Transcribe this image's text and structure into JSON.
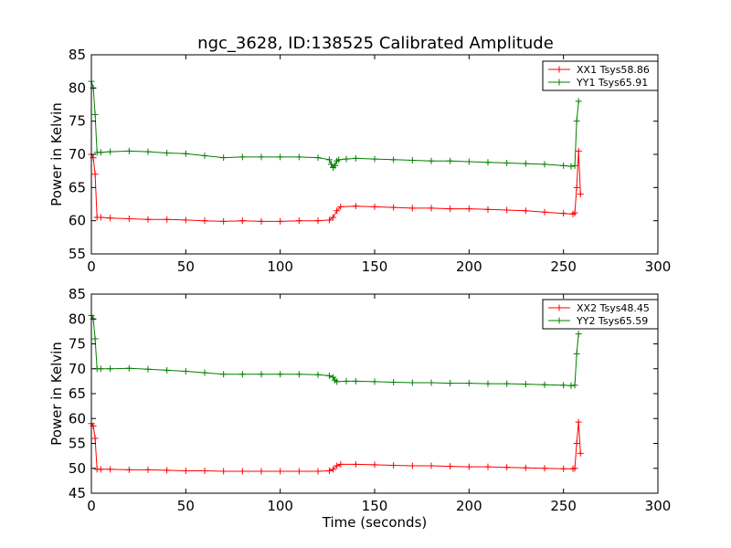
{
  "figure": {
    "title": "ngc_3628, ID:138525 Calibrated Amplitude"
  },
  "chart_data": [
    {
      "type": "line",
      "title": "ngc_3628, ID:138525 Calibrated Amplitude",
      "xlabel": "",
      "ylabel": "Power in Kelvin",
      "xlim": [
        0,
        300
      ],
      "ylim": [
        55,
        85
      ],
      "xticks": [
        "0",
        "50",
        "100",
        "150",
        "200",
        "250",
        "300"
      ],
      "yticks": [
        "55",
        "60",
        "65",
        "70",
        "75",
        "80",
        "85"
      ],
      "grid": false,
      "legend_position": "top-right",
      "series": [
        {
          "name": "XX1 Tsys58.86",
          "color": "#ff0000",
          "marker": "plus",
          "x": [
            0,
            1,
            2,
            3,
            5,
            10,
            20,
            30,
            40,
            50,
            60,
            70,
            80,
            90,
            100,
            110,
            120,
            126,
            128,
            130,
            132,
            140,
            150,
            160,
            170,
            180,
            190,
            200,
            210,
            220,
            230,
            240,
            250,
            255,
            256,
            257,
            258,
            259
          ],
          "y": [
            70,
            69.5,
            67,
            60.5,
            60.5,
            60.4,
            60.3,
            60.2,
            60.2,
            60.1,
            60.0,
            59.9,
            60.0,
            59.9,
            59.9,
            60.0,
            60.0,
            60.1,
            60.5,
            61.5,
            62.1,
            62.2,
            62.1,
            62.0,
            61.9,
            61.9,
            61.8,
            61.8,
            61.7,
            61.6,
            61.5,
            61.3,
            61.1,
            61.0,
            61.2,
            65,
            70.5,
            64
          ]
        },
        {
          "name": "YY1 Tsys65.91",
          "color": "#008000",
          "marker": "plus",
          "x": [
            0,
            1,
            2,
            3,
            5,
            10,
            20,
            30,
            40,
            50,
            60,
            70,
            80,
            90,
            100,
            110,
            120,
            126,
            127,
            128,
            129,
            130,
            131,
            135,
            140,
            150,
            160,
            170,
            180,
            190,
            200,
            210,
            220,
            230,
            240,
            250,
            254,
            256,
            257,
            258
          ],
          "y": [
            81,
            80,
            76,
            70.3,
            70.3,
            70.4,
            70.5,
            70.4,
            70.2,
            70.1,
            69.8,
            69.5,
            69.6,
            69.6,
            69.6,
            69.6,
            69.5,
            69.2,
            68.5,
            68.0,
            68.3,
            69.0,
            69.2,
            69.3,
            69.4,
            69.3,
            69.2,
            69.1,
            69.0,
            69.0,
            68.9,
            68.8,
            68.7,
            68.6,
            68.5,
            68.3,
            68.2,
            68.3,
            75,
            78
          ]
        }
      ]
    },
    {
      "type": "line",
      "title": "",
      "xlabel": "Time (seconds)",
      "ylabel": "Power in Kelvin",
      "xlim": [
        0,
        300
      ],
      "ylim": [
        45,
        85
      ],
      "xticks": [
        "0",
        "50",
        "100",
        "150",
        "200",
        "250",
        "300"
      ],
      "yticks": [
        "45",
        "50",
        "55",
        "60",
        "65",
        "70",
        "75",
        "80",
        "85"
      ],
      "grid": false,
      "legend_position": "top-right",
      "series": [
        {
          "name": "XX2 Tsys48.45",
          "color": "#ff0000",
          "marker": "plus",
          "x": [
            0,
            1,
            2,
            3,
            5,
            10,
            20,
            30,
            40,
            50,
            60,
            70,
            80,
            90,
            100,
            110,
            120,
            126,
            128,
            130,
            132,
            140,
            150,
            160,
            170,
            180,
            190,
            200,
            210,
            220,
            230,
            240,
            250,
            255,
            256,
            257,
            258,
            259
          ],
          "y": [
            59,
            58.5,
            56,
            49.8,
            49.8,
            49.8,
            49.7,
            49.7,
            49.6,
            49.5,
            49.5,
            49.4,
            49.4,
            49.4,
            49.4,
            49.4,
            49.4,
            49.5,
            49.8,
            50.5,
            50.8,
            50.8,
            50.7,
            50.6,
            50.5,
            50.5,
            50.4,
            50.3,
            50.3,
            50.2,
            50.1,
            50.0,
            49.9,
            49.9,
            50.0,
            55,
            59.3,
            53
          ]
        },
        {
          "name": "YY2 Tsys65.59",
          "color": "#008000",
          "marker": "plus",
          "x": [
            0,
            1,
            2,
            3,
            5,
            10,
            20,
            30,
            40,
            50,
            60,
            70,
            80,
            90,
            100,
            110,
            120,
            126,
            128,
            129,
            130,
            135,
            140,
            150,
            160,
            170,
            180,
            190,
            200,
            210,
            220,
            230,
            240,
            250,
            254,
            256,
            257,
            258
          ],
          "y": [
            80.7,
            80,
            76,
            70.0,
            70.0,
            70.0,
            70.1,
            69.9,
            69.7,
            69.5,
            69.2,
            68.9,
            68.9,
            68.9,
            68.9,
            68.9,
            68.8,
            68.6,
            68.3,
            67.7,
            67.4,
            67.5,
            67.5,
            67.4,
            67.3,
            67.2,
            67.2,
            67.1,
            67.1,
            67.0,
            67.0,
            66.9,
            66.8,
            66.7,
            66.6,
            66.7,
            73,
            77
          ]
        }
      ]
    }
  ]
}
